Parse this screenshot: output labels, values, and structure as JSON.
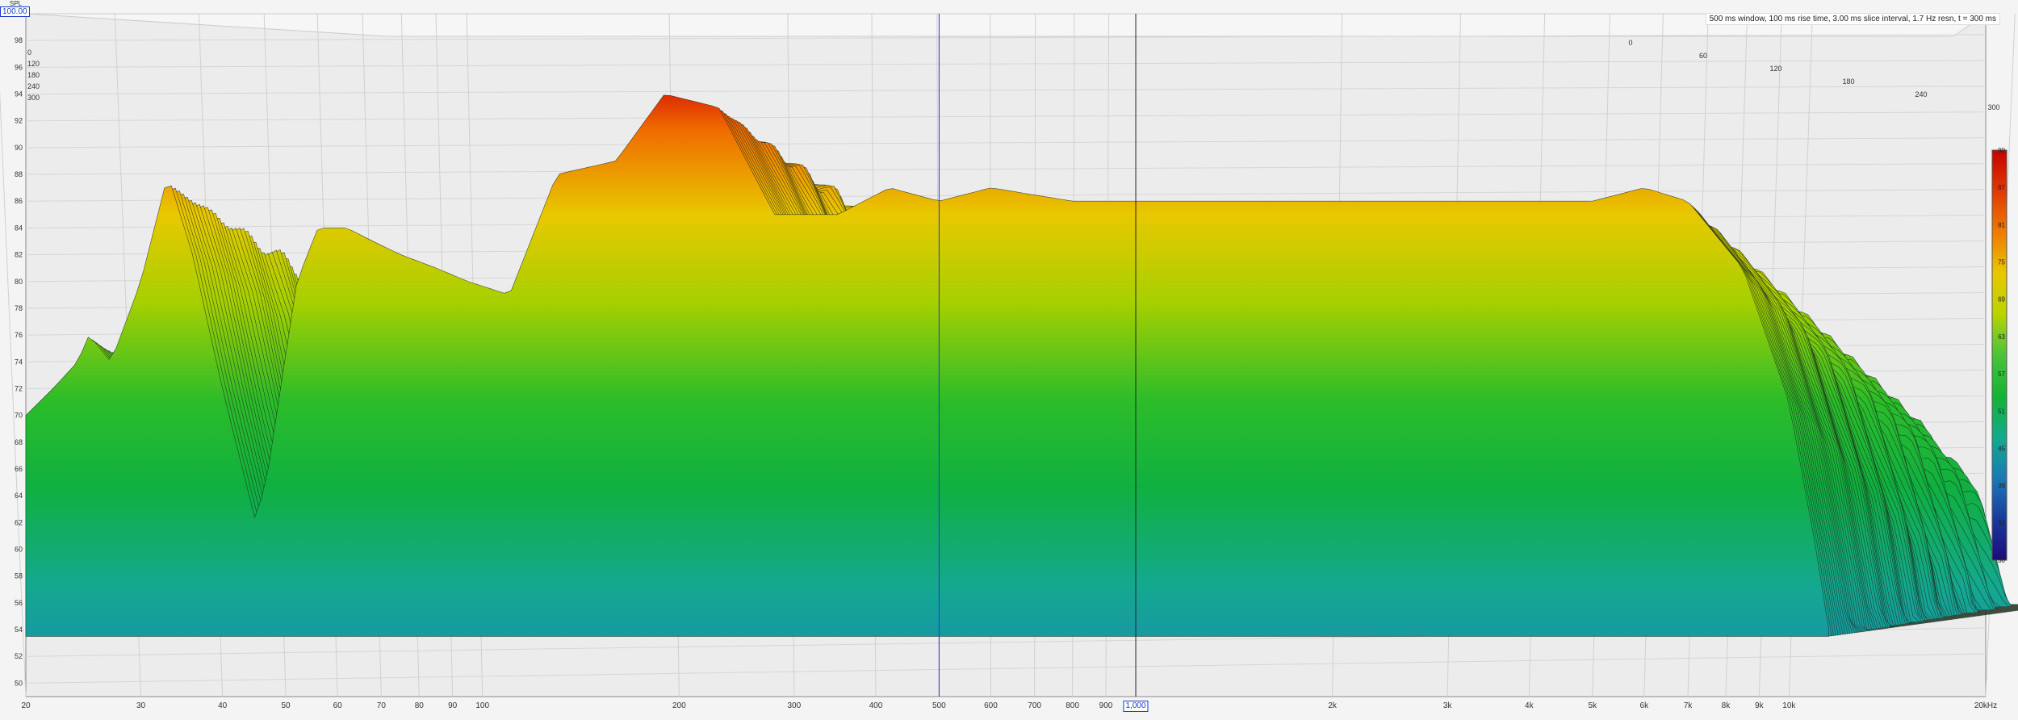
{
  "chart_data": {
    "type": "waterfall",
    "title": "",
    "annotation": "500 ms window, 100 ms rise time, 3.00 ms slice interval, 1.7 Hz resn, t = 300 ms",
    "ylabel": "SPL",
    "cursor_value": "100.00",
    "cursor_x_label": "1,000",
    "x_scale": "log",
    "xlim": [
      20,
      20000
    ],
    "ylim": [
      49,
      100
    ],
    "x_ticks": [
      {
        "v": 20,
        "label": "20"
      },
      {
        "v": 30,
        "label": "30"
      },
      {
        "v": 40,
        "label": "40"
      },
      {
        "v": 50,
        "label": "50"
      },
      {
        "v": 60,
        "label": "60"
      },
      {
        "v": 70,
        "label": "70"
      },
      {
        "v": 80,
        "label": "80"
      },
      {
        "v": 90,
        "label": "90"
      },
      {
        "v": 100,
        "label": "100"
      },
      {
        "v": 200,
        "label": "200"
      },
      {
        "v": 300,
        "label": "300"
      },
      {
        "v": 400,
        "label": "400"
      },
      {
        "v": 500,
        "label": "500"
      },
      {
        "v": 600,
        "label": "600"
      },
      {
        "v": 700,
        "label": "700"
      },
      {
        "v": 800,
        "label": "800"
      },
      {
        "v": 900,
        "label": "900"
      },
      {
        "v": 2000,
        "label": "2k"
      },
      {
        "v": 3000,
        "label": "3k"
      },
      {
        "v": 4000,
        "label": "4k"
      },
      {
        "v": 5000,
        "label": "5k"
      },
      {
        "v": 6000,
        "label": "6k"
      },
      {
        "v": 7000,
        "label": "7k"
      },
      {
        "v": 8000,
        "label": "8k"
      },
      {
        "v": 9000,
        "label": "9k"
      },
      {
        "v": 10000,
        "label": "10k"
      },
      {
        "v": 20000,
        "label": "20kHz"
      }
    ],
    "y_ticks": [
      50,
      52,
      54,
      56,
      58,
      60,
      62,
      64,
      66,
      68,
      70,
      72,
      74,
      76,
      78,
      80,
      82,
      84,
      86,
      88,
      90,
      92,
      94,
      96,
      98
    ],
    "time_axis_labels": [
      "0",
      "60",
      "120",
      "180",
      "240",
      "300"
    ],
    "time_axis_labels_left": [
      "0",
      "120",
      "180",
      "240",
      "300"
    ],
    "colorbar_ticks": [
      "90",
      "87",
      "81",
      "75",
      "69",
      "63",
      "57",
      "51",
      "45",
      "39",
      "33",
      "30"
    ],
    "colorbar_colors": [
      "#c80000",
      "#e03a00",
      "#f07a00",
      "#e8c800",
      "#b8d400",
      "#4cc23a",
      "#12b436",
      "#14aa8c",
      "#1a7ab4",
      "#1a3a9c",
      "#1c0a7a"
    ],
    "cursors": [
      {
        "x": 500,
        "color": "#1a3cc8"
      },
      {
        "x": 1000,
        "color": "#222222"
      }
    ],
    "front_response": [
      {
        "x": 20,
        "y": 70
      },
      {
        "x": 22,
        "y": 72
      },
      {
        "x": 24,
        "y": 74
      },
      {
        "x": 25,
        "y": 76
      },
      {
        "x": 27,
        "y": 74
      },
      {
        "x": 30,
        "y": 80
      },
      {
        "x": 33,
        "y": 88
      },
      {
        "x": 36,
        "y": 82
      },
      {
        "x": 40,
        "y": 72
      },
      {
        "x": 45,
        "y": 62
      },
      {
        "x": 47,
        "y": 66
      },
      {
        "x": 52,
        "y": 80
      },
      {
        "x": 56,
        "y": 84
      },
      {
        "x": 62,
        "y": 84
      },
      {
        "x": 68,
        "y": 83
      },
      {
        "x": 75,
        "y": 82
      },
      {
        "x": 85,
        "y": 81
      },
      {
        "x": 95,
        "y": 80
      },
      {
        "x": 110,
        "y": 79
      },
      {
        "x": 130,
        "y": 88
      },
      {
        "x": 160,
        "y": 89
      },
      {
        "x": 190,
        "y": 94
      },
      {
        "x": 230,
        "y": 93
      },
      {
        "x": 280,
        "y": 85
      },
      {
        "x": 350,
        "y": 85
      },
      {
        "x": 420,
        "y": 87
      },
      {
        "x": 500,
        "y": 86
      },
      {
        "x": 600,
        "y": 87
      },
      {
        "x": 800,
        "y": 86
      },
      {
        "x": 1000,
        "y": 86
      },
      {
        "x": 1500,
        "y": 86
      },
      {
        "x": 2000,
        "y": 86
      },
      {
        "x": 3000,
        "y": 86
      },
      {
        "x": 4000,
        "y": 86
      },
      {
        "x": 5000,
        "y": 86
      },
      {
        "x": 6000,
        "y": 87
      },
      {
        "x": 7000,
        "y": 86
      },
      {
        "x": 8500,
        "y": 81
      },
      {
        "x": 10000,
        "y": 71
      },
      {
        "x": 11000,
        "y": 60
      },
      {
        "x": 11500,
        "y": 54
      }
    ],
    "slice_count": 100
  }
}
